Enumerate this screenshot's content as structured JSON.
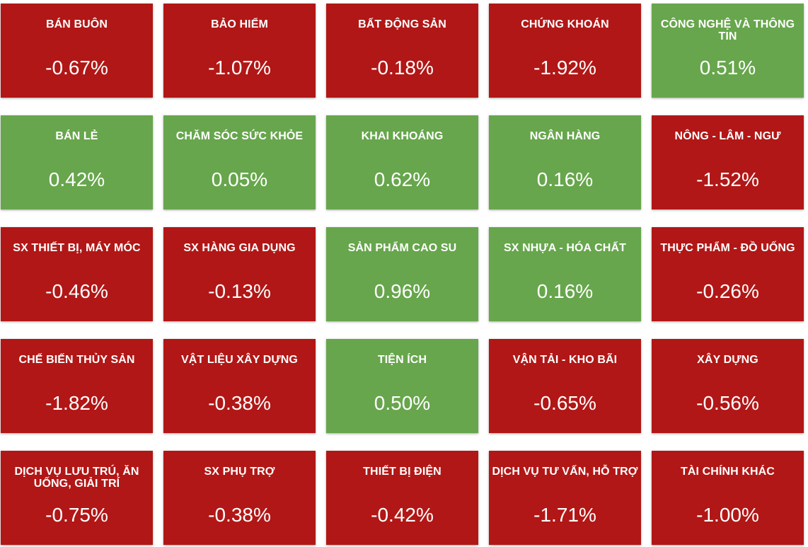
{
  "colors": {
    "down": "#b11716",
    "up": "#67a64c",
    "text": "#ffffff"
  },
  "sectors": [
    {
      "name": "BÁN BUÔN",
      "change": "-0.67%",
      "direction": "down"
    },
    {
      "name": "BẢO HIỂM",
      "change": "-1.07%",
      "direction": "down"
    },
    {
      "name": "BẤT ĐỘNG SẢN",
      "change": "-0.18%",
      "direction": "down"
    },
    {
      "name": "CHỨNG KHOÁN",
      "change": "-1.92%",
      "direction": "down"
    },
    {
      "name": "CÔNG NGHỆ VÀ THÔNG TIN",
      "change": "0.51%",
      "direction": "up"
    },
    {
      "name": "BÁN LẺ",
      "change": "0.42%",
      "direction": "up"
    },
    {
      "name": "CHĂM SÓC SỨC KHỎE",
      "change": "0.05%",
      "direction": "up"
    },
    {
      "name": "KHAI KHOÁNG",
      "change": "0.62%",
      "direction": "up"
    },
    {
      "name": "NGÂN HÀNG",
      "change": "0.16%",
      "direction": "up"
    },
    {
      "name": "NÔNG - LÂM - NGƯ",
      "change": "-1.52%",
      "direction": "down"
    },
    {
      "name": "SX THIẾT BỊ, MÁY MÓC",
      "change": "-0.46%",
      "direction": "down"
    },
    {
      "name": "SX HÀNG GIA DỤNG",
      "change": "-0.13%",
      "direction": "down"
    },
    {
      "name": "SẢN PHẨM CAO SU",
      "change": "0.96%",
      "direction": "up"
    },
    {
      "name": "SX NHỰA - HÓA CHẤT",
      "change": "0.16%",
      "direction": "up"
    },
    {
      "name": "THỰC PHẨM - ĐỒ UỐNG",
      "change": "-0.26%",
      "direction": "down"
    },
    {
      "name": "CHẾ BIẾN THỦY SẢN",
      "change": "-1.82%",
      "direction": "down"
    },
    {
      "name": "VẬT LIỆU XÂY DỰNG",
      "change": "-0.38%",
      "direction": "down"
    },
    {
      "name": "TIỆN ÍCH",
      "change": "0.50%",
      "direction": "up"
    },
    {
      "name": "VẬN TẢI - KHO BÃI",
      "change": "-0.65%",
      "direction": "down"
    },
    {
      "name": "XÂY DỰNG",
      "change": "-0.56%",
      "direction": "down"
    },
    {
      "name": "DỊCH VỤ LƯU TRÚ, ĂN UỐNG, GIẢI TRÍ",
      "change": "-0.75%",
      "direction": "down"
    },
    {
      "name": "SX PHỤ TRỢ",
      "change": "-0.38%",
      "direction": "down"
    },
    {
      "name": "THIẾT BỊ ĐIỆN",
      "change": "-0.42%",
      "direction": "down"
    },
    {
      "name": "DỊCH VỤ TƯ VẤN, HỖ TRỢ",
      "change": "-1.71%",
      "direction": "down"
    },
    {
      "name": "TÀI CHÍNH KHÁC",
      "change": "-1.00%",
      "direction": "down"
    }
  ]
}
